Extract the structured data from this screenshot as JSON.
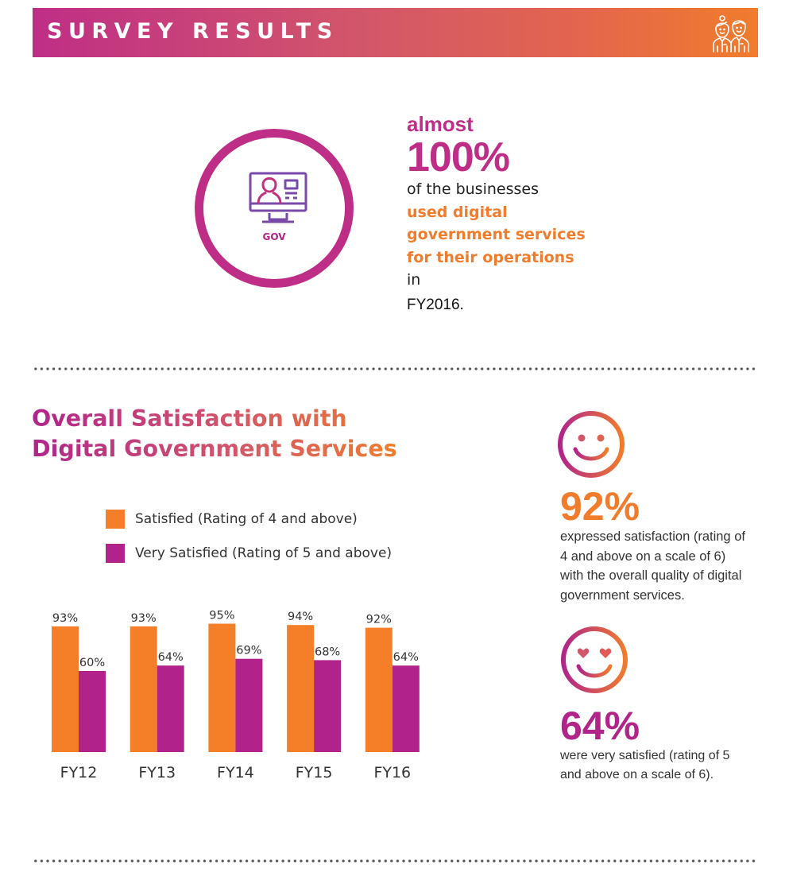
{
  "header": {
    "title": "SURVEY RESULTS",
    "icon": "people-icon"
  },
  "usage": {
    "icon": "monitor-user-icon",
    "gov_label": "GOV",
    "almost": "almost",
    "percent": "100%",
    "line1": "of the businesses",
    "highlight": "used digital government services for their operations",
    "after_highlight": " in",
    "year": "FY2016."
  },
  "colors": {
    "magenta": "#bf2e86",
    "purple_bar": "#b1248a",
    "orange": "#f07c2c"
  },
  "chart_data": {
    "type": "bar",
    "title": "Overall Satisfaction with Digital Government Services",
    "title_lines": [
      "Overall Satisfaction with",
      "Digital Government Services"
    ],
    "categories": [
      "FY12",
      "FY13",
      "FY14",
      "FY15",
      "FY16"
    ],
    "series": [
      {
        "name": "Satisfied (Rating of 4 and above)",
        "color": "#f47f28",
        "values": [
          93,
          93,
          95,
          94,
          92
        ],
        "labels": [
          "93%",
          "93%",
          "95%",
          "94%",
          "92%"
        ]
      },
      {
        "name": "Very Satisfied (Rating of 5 and above)",
        "color": "#b1228a",
        "values": [
          60,
          64,
          69,
          68,
          64
        ],
        "labels": [
          "60%",
          "64%",
          "69%",
          "68%",
          "64%"
        ]
      }
    ],
    "ylim": [
      0,
      100
    ],
    "xlabel": "",
    "ylabel": "",
    "grid": false,
    "legend_position": "top-left"
  },
  "side_stats": [
    {
      "icon": "smiley-icon",
      "percent": "92%",
      "text": "expressed satisfaction (rating of 4 and above on a scale of 6) with the overall quality of digital government services."
    },
    {
      "icon": "heart-eyes-smiley-icon",
      "percent": "64%",
      "text": "were very satisfied (rating of 5 and above on a scale of 6)."
    }
  ]
}
